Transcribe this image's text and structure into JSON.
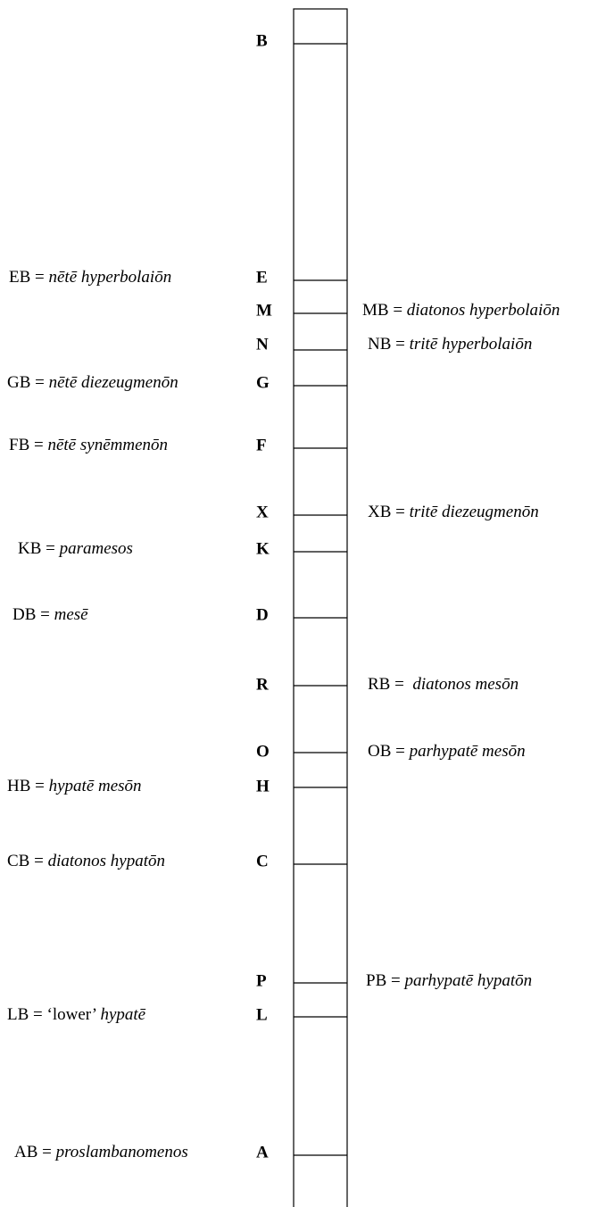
{
  "points": [
    {
      "letter": "B"
    },
    {
      "letter": "E",
      "label": {
        "lead": "EB = ",
        "term": "nētē hyperbolaiōn"
      }
    },
    {
      "letter": "M",
      "label": {
        "lead": "MB = ",
        "term": "diatonos hyperbolaiōn"
      }
    },
    {
      "letter": "N",
      "label": {
        "lead": "NB = ",
        "term": "tritē hyperbolaiōn"
      }
    },
    {
      "letter": "G",
      "label": {
        "lead": "GB = ",
        "term": "nētē diezeugmenōn"
      }
    },
    {
      "letter": "F",
      "label": {
        "lead": "FB = ",
        "term": "nētē synēmmenōn"
      }
    },
    {
      "letter": "X",
      "label": {
        "lead": "XB = ",
        "term": "tritē diezeugmenōn"
      }
    },
    {
      "letter": "K",
      "label": {
        "lead": "KB = ",
        "term": "paramesos"
      }
    },
    {
      "letter": "D",
      "label": {
        "lead": "DB = ",
        "term": "mesē"
      }
    },
    {
      "letter": "R",
      "label": {
        "lead": "RB =  ",
        "term": "diatonos mesōn"
      }
    },
    {
      "letter": "O",
      "label": {
        "lead": "OB = ",
        "term": "parhypatē mesōn"
      }
    },
    {
      "letter": "H",
      "label": {
        "lead": "HB = ",
        "term": "hypatē mesōn"
      }
    },
    {
      "letter": "C",
      "label": {
        "lead": "CB = ",
        "term": "diatonos hypatōn"
      }
    },
    {
      "letter": "P",
      "label": {
        "lead": "PB = ",
        "term": "parhypatē hypatōn"
      }
    },
    {
      "letter": "L",
      "label": {
        "lead": "LB = ‘lower’ ",
        "term": "hypatē"
      }
    },
    {
      "letter": "A",
      "label": {
        "lead": "AB = ",
        "term": "proslambanomenos"
      }
    }
  ]
}
